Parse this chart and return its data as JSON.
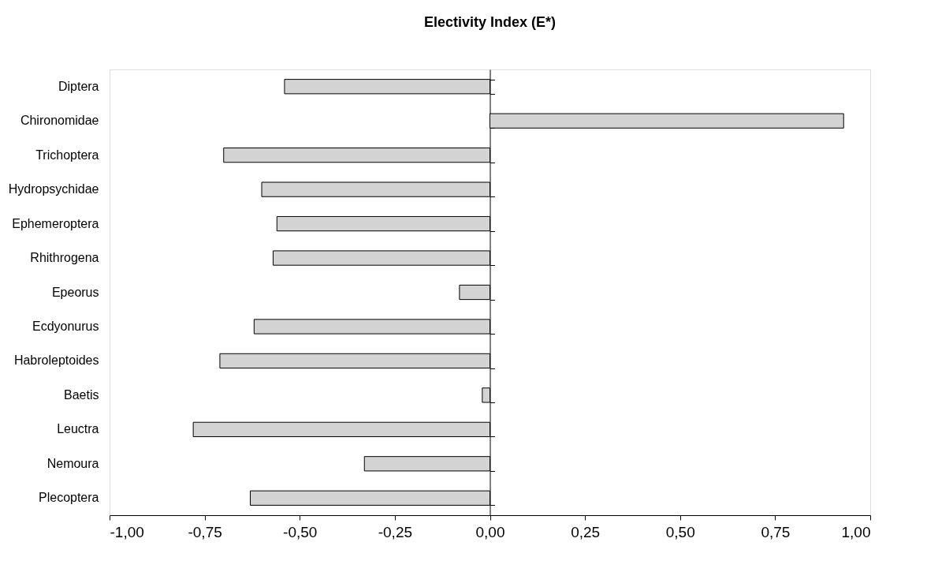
{
  "chart_data": {
    "type": "bar",
    "orientation": "horizontal",
    "title": "Electivity Index (E*)",
    "categories": [
      "Diptera",
      "Chironomidae",
      "Trichoptera",
      "Hydropsychidae",
      "Ephemeroptera",
      "Rhithrogena",
      "Epeorus",
      "Ecdyonurus",
      "Habroleptoides",
      "Baetis",
      "Leuctra",
      "Nemoura",
      "Plecoptera"
    ],
    "values": [
      -0.54,
      0.93,
      -0.7,
      -0.6,
      -0.56,
      -0.57,
      -0.08,
      -0.62,
      -0.71,
      -0.02,
      -0.78,
      -0.33,
      -0.63
    ],
    "color": "#d3d3d3",
    "xlim": [
      -1,
      1
    ],
    "xticks": [
      {
        "value": -1,
        "label": "-1,00"
      },
      {
        "value": -0.75,
        "label": "-0,75"
      },
      {
        "value": -0.5,
        "label": "-0,50"
      },
      {
        "value": -0.25,
        "label": "-0,25"
      },
      {
        "value": 0,
        "label": "0,00"
      },
      {
        "value": 0.25,
        "label": "0,25"
      },
      {
        "value": 0.5,
        "label": "0,50"
      },
      {
        "value": 0.75,
        "label": "0,75"
      },
      {
        "value": 1,
        "label": "1,00"
      }
    ],
    "xlabel": null
  }
}
